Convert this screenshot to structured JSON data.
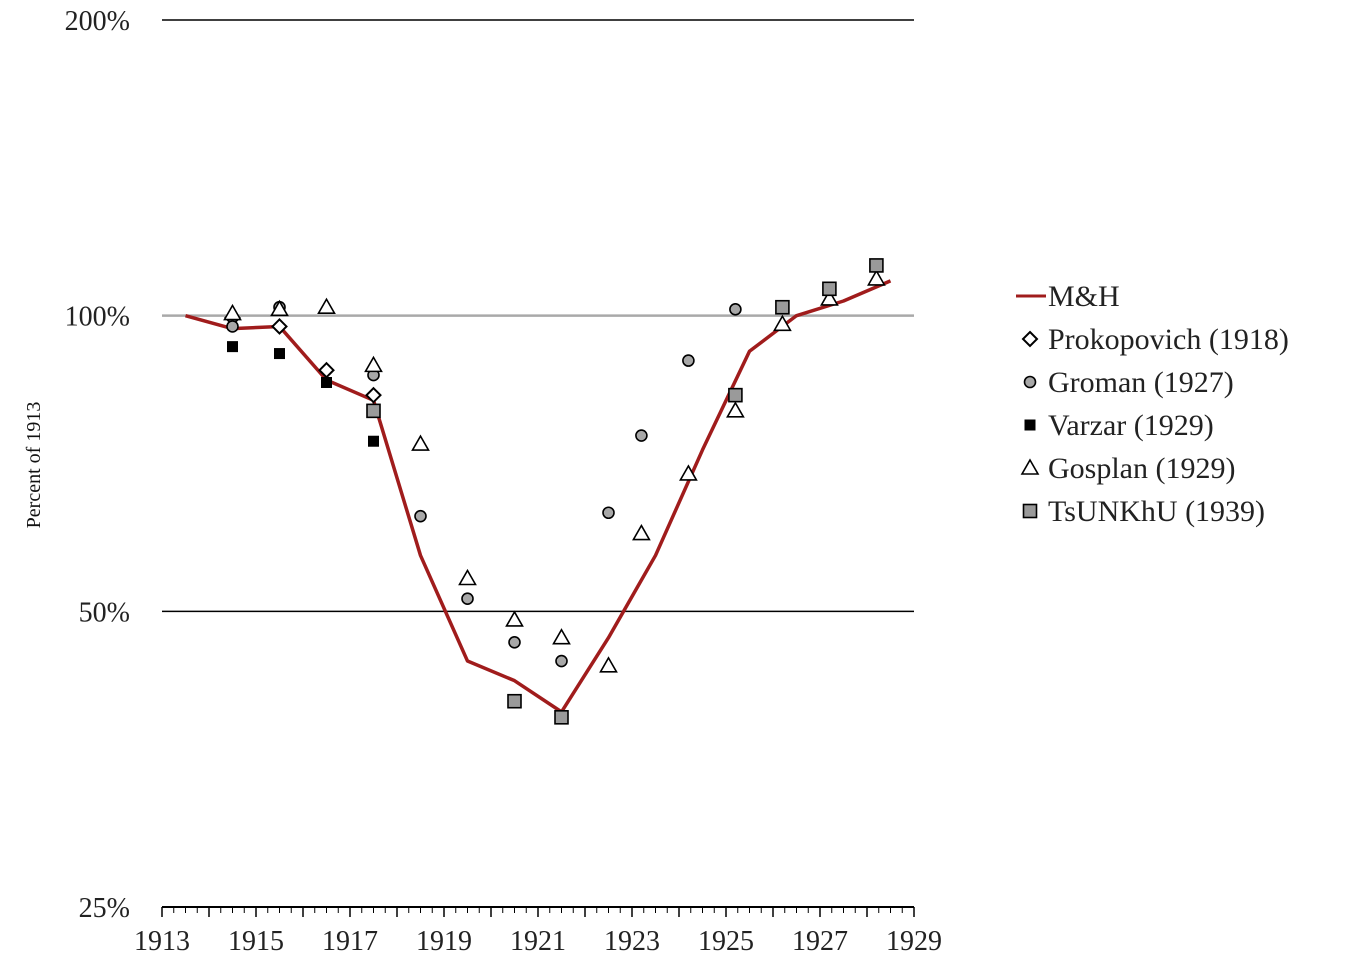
{
  "chart_data": {
    "type": "line",
    "title": "",
    "xlabel": "",
    "ylabel": "Percent of 1913",
    "y_scale": "log",
    "xlim": [
      1913,
      1929
    ],
    "ylim": [
      25,
      200
    ],
    "x_ticks": [
      "1913",
      "1915",
      "1917",
      "1919",
      "1921",
      "1923",
      "1925",
      "1927",
      "1929"
    ],
    "y_ticks": [
      {
        "value": 25,
        "label": "25%"
      },
      {
        "value": 50,
        "label": "50%"
      },
      {
        "value": 100,
        "label": "100%"
      },
      {
        "value": 200,
        "label": "200%"
      }
    ],
    "grid": "horizontal",
    "legend_position": "right",
    "series": [
      {
        "name": "M&H",
        "kind": "line",
        "color": "#a01c1c",
        "x": [
          1913.5,
          1914.5,
          1915.5,
          1916.5,
          1917.5,
          1918.5,
          1919.5,
          1920.5,
          1921.5,
          1922.5,
          1923.5,
          1924.5,
          1925.5,
          1926.5,
          1927.5,
          1928.5
        ],
        "y": [
          100,
          97,
          97.5,
          86,
          82,
          57,
          44.5,
          42.5,
          39.5,
          47,
          57,
          73,
          92,
          100,
          103.5,
          108.5
        ]
      },
      {
        "name": "Prokopovich (1918)",
        "kind": "marker",
        "marker": "diamond",
        "x": [
          1914.5,
          1915.5,
          1916.5,
          1917.5
        ],
        "y": [
          99.5,
          97.5,
          88,
          83
        ]
      },
      {
        "name": "Groman (1927)",
        "kind": "marker",
        "marker": "circle",
        "x": [
          1914.5,
          1915.5,
          1917.5,
          1918.5,
          1919.5,
          1920.5,
          1921.5,
          1922.5,
          1923.2,
          1924.2,
          1925.2
        ],
        "y": [
          97.5,
          102,
          87,
          62.5,
          51.5,
          46.5,
          44.5,
          63,
          75.5,
          90,
          101.5
        ]
      },
      {
        "name": "Varzar (1929)",
        "kind": "marker",
        "marker": "square",
        "x": [
          1914.5,
          1915.5,
          1916.5,
          1917.5
        ],
        "y": [
          93,
          91.5,
          85.5,
          74.5
        ]
      },
      {
        "name": "Gosplan (1929)",
        "kind": "marker",
        "marker": "triangle",
        "x": [
          1914.5,
          1915.5,
          1916.5,
          1917.5,
          1918.5,
          1919.5,
          1920.5,
          1921.5,
          1922.5,
          1923.2,
          1924.2,
          1925.2,
          1926.2,
          1927.2,
          1928.2
        ],
        "y": [
          100.5,
          101.5,
          102,
          89,
          74,
          54,
          49,
          47,
          44,
          60,
          69,
          80,
          98,
          104,
          109
        ]
      },
      {
        "name": "TsUNKhU (1939)",
        "kind": "marker",
        "marker": "gray-square",
        "x": [
          1917.5,
          1920.5,
          1921.5,
          1925.2,
          1926.2,
          1927.2,
          1928.2
        ],
        "y": [
          80,
          40.5,
          39,
          83,
          102,
          106.5,
          112.5
        ]
      }
    ]
  }
}
